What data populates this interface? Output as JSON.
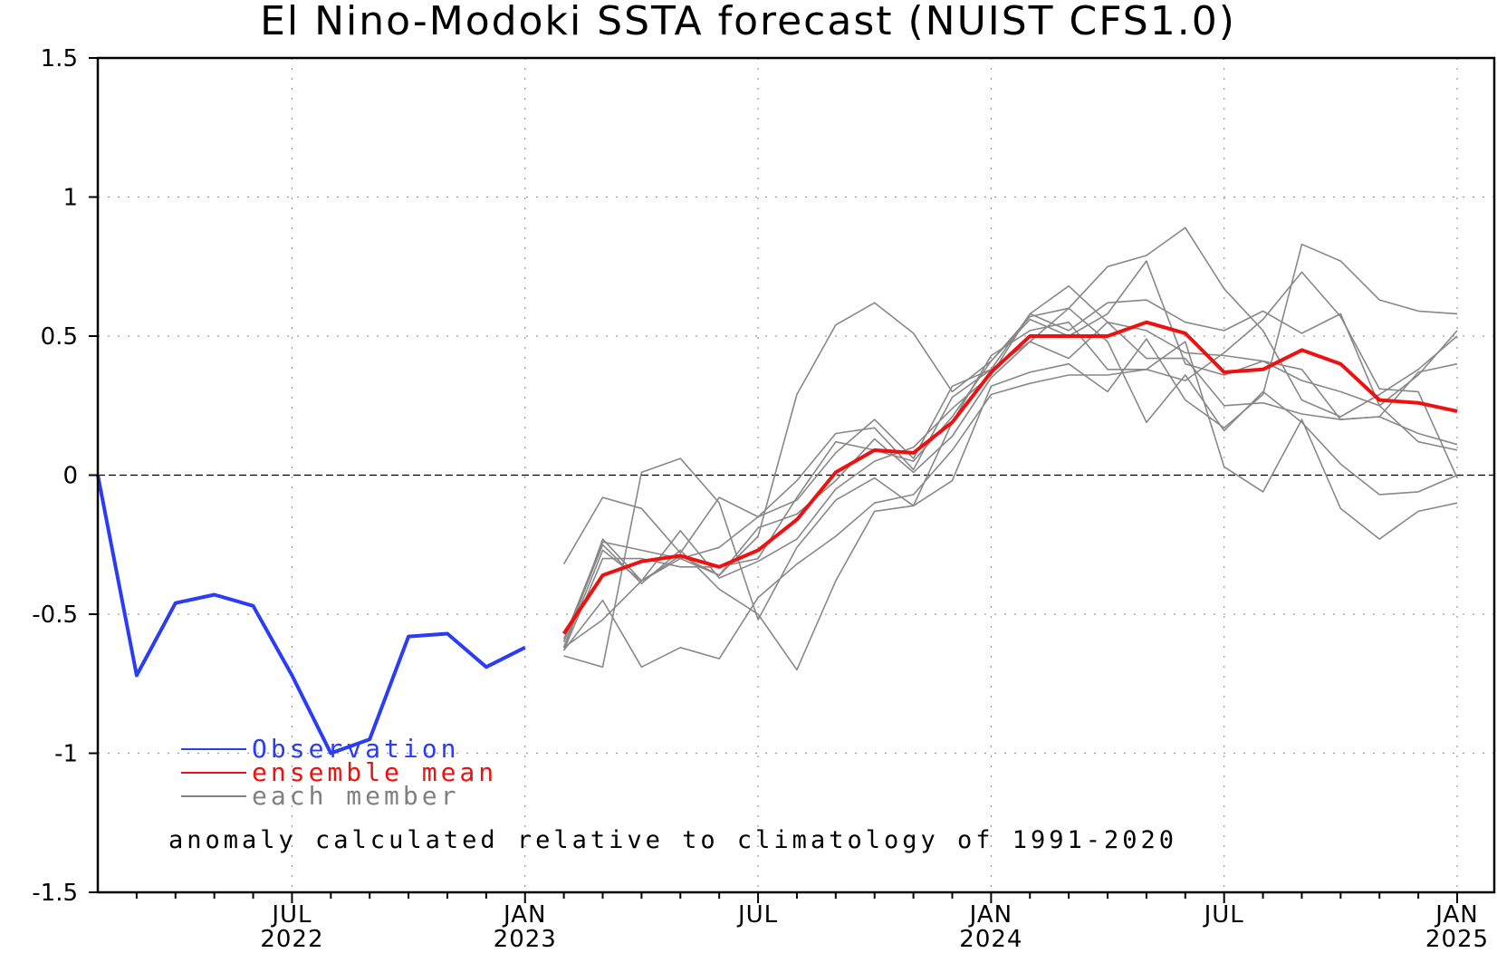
{
  "chart_data": {
    "type": "line",
    "title": "El Nino-Modoki SSTA forecast (NUIST CFS1.0)",
    "ylim": [
      -1.5,
      1.5
    ],
    "yticks": [
      1.5,
      1,
      0.5,
      0,
      -0.5,
      -1,
      -1.5
    ],
    "ytick_labels": [
      "1.5",
      "1",
      "0.5",
      "0",
      "-0.5",
      "-1",
      "-1.5"
    ],
    "xlim": [
      "2022-02",
      "2025-01"
    ],
    "xticks": [
      {
        "date": "2022-07",
        "month": "JUL",
        "year": "2022"
      },
      {
        "date": "2023-01",
        "month": "JAN",
        "year": "2023"
      },
      {
        "date": "2023-07",
        "month": "JUL",
        "year": ""
      },
      {
        "date": "2024-01",
        "month": "JAN",
        "year": "2024"
      },
      {
        "date": "2024-07",
        "month": "JUL",
        "year": ""
      },
      {
        "date": "2025-01",
        "month": "JAN",
        "year": "2025"
      }
    ],
    "grid": true,
    "legend_position": "bottom-left",
    "legend": [
      {
        "label": "Observation",
        "color": "#2b3cf5"
      },
      {
        "label": "ensemble mean",
        "color": "#ee1111"
      },
      {
        "label": "each member",
        "color": "#808080"
      }
    ],
    "annotation": "anomaly calculated relative to climatology of 1991-2020",
    "observation": {
      "x": [
        "2022-02",
        "2022-03",
        "2022-04",
        "2022-05",
        "2022-06",
        "2022-07",
        "2022-08",
        "2022-09",
        "2022-10",
        "2022-11",
        "2022-12",
        "2023-01"
      ],
      "values": [
        0.0,
        -0.72,
        -0.46,
        -0.43,
        -0.47,
        -0.72,
        -1.0,
        -0.95,
        -0.58,
        -0.57,
        -0.69,
        -0.62
      ]
    },
    "ensemble_mean": {
      "x": [
        "2023-02",
        "2023-03",
        "2023-04",
        "2023-05",
        "2023-06",
        "2023-07",
        "2023-08",
        "2023-09",
        "2023-10",
        "2023-11",
        "2023-12",
        "2024-01",
        "2024-02",
        "2024-03",
        "2024-04",
        "2024-05",
        "2024-06",
        "2024-07",
        "2024-08",
        "2024-09",
        "2024-10",
        "2024-11",
        "2024-12",
        "2025-01"
      ],
      "values": [
        -0.57,
        -0.36,
        -0.31,
        -0.29,
        -0.33,
        -0.27,
        -0.16,
        0.01,
        0.09,
        0.08,
        0.19,
        0.37,
        0.5,
        0.5,
        0.5,
        0.55,
        0.51,
        0.37,
        0.38,
        0.45,
        0.4,
        0.27,
        0.26,
        0.23
      ]
    },
    "members": [
      {
        "values": [
          -0.32,
          -0.08,
          -0.12,
          -0.28,
          -0.08,
          -0.15,
          -0.02,
          0.15,
          0.17,
          0.02,
          0.28,
          0.38,
          0.58,
          0.68,
          0.55,
          0.52,
          0.44,
          0.43,
          0.41,
          0.38,
          0.2,
          0.21,
          0.37,
          0.4
        ]
      },
      {
        "values": [
          -0.62,
          -0.23,
          -0.38,
          -0.3,
          -0.36,
          -0.22,
          0.29,
          0.54,
          0.62,
          0.51,
          0.3,
          0.41,
          0.57,
          0.6,
          0.75,
          0.79,
          0.89,
          0.67,
          0.52,
          0.27,
          0.21,
          0.29,
          0.38,
          0.5
        ]
      },
      {
        "values": [
          -0.63,
          -0.45,
          -0.69,
          -0.62,
          -0.66,
          -0.44,
          -0.32,
          -0.22,
          -0.1,
          -0.07,
          0.09,
          0.29,
          0.33,
          0.36,
          0.36,
          0.38,
          0.34,
          0.44,
          0.56,
          0.73,
          0.57,
          0.31,
          0.3,
          -0.01
        ]
      },
      {
        "values": [
          -0.6,
          -0.25,
          -0.39,
          -0.27,
          -0.41,
          -0.5,
          -0.7,
          -0.38,
          -0.13,
          -0.11,
          -0.02,
          0.32,
          0.37,
          0.4,
          0.3,
          0.49,
          0.27,
          0.17,
          0.29,
          0.83,
          0.77,
          0.63,
          0.59,
          0.58
        ]
      },
      {
        "values": [
          -0.63,
          -0.3,
          -0.3,
          -0.33,
          -0.33,
          -0.3,
          -0.08,
          0.12,
          0.09,
          0.05,
          0.21,
          0.41,
          0.56,
          0.5,
          0.58,
          0.77,
          0.4,
          0.36,
          0.41,
          0.34,
          0.3,
          0.25,
          0.12,
          0.09
        ]
      },
      {
        "values": [
          -0.62,
          -0.27,
          -0.38,
          -0.2,
          -0.37,
          -0.31,
          -0.23,
          -0.05,
          0.05,
          0.1,
          0.24,
          0.36,
          0.58,
          0.52,
          0.62,
          0.63,
          0.55,
          0.52,
          0.59,
          0.51,
          0.58,
          0.25,
          0.36,
          0.52
        ]
      },
      {
        "values": [
          -0.65,
          -0.69,
          0.01,
          0.06,
          -0.1,
          -0.52,
          -0.26,
          -0.09,
          -0.01,
          -0.11,
          0.19,
          0.43,
          0.52,
          0.55,
          0.38,
          0.38,
          0.48,
          0.03,
          -0.06,
          0.2,
          -0.12,
          -0.23,
          -0.13,
          -0.1
        ]
      },
      {
        "values": [
          -0.59,
          -0.24,
          -0.27,
          -0.3,
          -0.26,
          -0.15,
          -0.09,
          0.08,
          0.2,
          0.06,
          0.32,
          0.38,
          0.48,
          0.6,
          0.48,
          0.19,
          0.36,
          0.16,
          0.3,
          0.19,
          0.04,
          -0.07,
          -0.06,
          0.0
        ]
      },
      {
        "values": [
          -0.62,
          -0.52,
          -0.38,
          -0.29,
          -0.36,
          -0.19,
          -0.14,
          -0.02,
          0.13,
          0.01,
          0.14,
          0.35,
          0.48,
          0.42,
          0.55,
          0.42,
          0.42,
          0.25,
          0.26,
          0.22,
          0.2,
          0.21,
          0.15,
          0.11
        ]
      }
    ]
  }
}
